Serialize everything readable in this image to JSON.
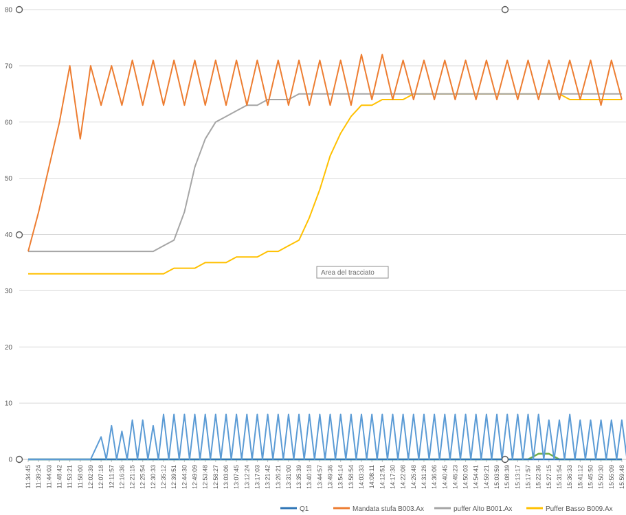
{
  "chart_data": {
    "type": "line",
    "title": "",
    "xlabel": "",
    "ylabel": "",
    "ylim": [
      0,
      80
    ],
    "yticks": [
      0,
      10,
      20,
      30,
      40,
      50,
      60,
      70,
      80
    ],
    "grid": true,
    "legend_position": "bottom",
    "x": [
      "11:34:45",
      "11:39:24",
      "11:44:03",
      "11:48:42",
      "11:53:21",
      "11:58:00",
      "12:02:39",
      "12:07:18",
      "12:11:57",
      "12:16:36",
      "12:21:15",
      "12:25:54",
      "12:30:33",
      "12:35:12",
      "12:39:51",
      "12:44:30",
      "12:49:09",
      "12:53:48",
      "12:58:27",
      "13:03:06",
      "13:07:45",
      "13:12:24",
      "13:17:03",
      "13:21:42",
      "13:26:21",
      "13:31:00",
      "13:35:39",
      "13:40:18",
      "13:44:57",
      "13:49:36",
      "13:54:14",
      "13:58:54",
      "14:03:33",
      "14:08:11",
      "14:12:51",
      "14:17:30",
      "14:22:08",
      "14:26:48",
      "14:31:26",
      "14:36:06",
      "14:40:45",
      "14:45:23",
      "14:50:03",
      "14:54:41",
      "14:59:21",
      "15:03:59",
      "15:08:39",
      "15:13:17",
      "15:17:57",
      "15:22:36",
      "15:27:15",
      "15:31:54",
      "15:36:33",
      "15:41:12",
      "15:45:50",
      "15:50:30",
      "15:55:09",
      "15:59:48"
    ],
    "series": [
      {
        "name": "Q1",
        "color": "#2e75b6",
        "values": [
          0,
          0,
          0,
          0,
          0,
          0,
          0,
          0,
          0,
          0,
          0,
          0,
          0,
          0,
          0,
          0,
          0,
          0,
          0,
          0,
          0,
          0,
          0,
          0,
          0,
          0,
          0,
          0,
          0,
          0,
          0,
          0,
          0,
          0,
          0,
          0,
          0,
          0,
          0,
          0,
          0,
          0,
          0,
          0,
          0,
          0,
          0,
          0,
          0,
          0,
          0,
          0,
          0,
          0,
          0,
          0,
          0,
          0
        ]
      },
      {
        "name": "Mandata stufa B003.Ax",
        "color": "#ed7d31",
        "values": [
          37,
          44,
          52,
          60,
          70,
          57,
          70,
          63,
          70,
          63,
          71,
          63,
          71,
          63,
          71,
          63,
          71,
          63,
          71,
          63,
          71,
          63,
          71,
          63,
          71,
          63,
          71,
          63,
          71,
          63,
          71,
          63,
          72,
          64,
          72,
          64,
          71,
          64,
          71,
          64,
          71,
          64,
          71,
          64,
          71,
          64,
          71,
          64,
          71,
          64,
          71,
          64,
          71,
          64,
          71,
          63,
          71,
          64
        ]
      },
      {
        "name": "puffer Alto B001.Ax",
        "color": "#a5a5a5",
        "values": [
          37,
          37,
          37,
          37,
          37,
          37,
          37,
          37,
          37,
          37,
          37,
          37,
          37,
          38,
          39,
          44,
          52,
          57,
          60,
          61,
          62,
          63,
          63,
          64,
          64,
          64,
          65,
          65,
          65,
          65,
          65,
          65,
          65,
          65,
          65,
          65,
          65,
          65,
          65,
          65,
          65,
          65,
          65,
          65,
          65,
          65,
          65,
          65,
          65,
          65,
          65,
          65,
          65,
          65,
          65,
          65,
          65,
          65
        ]
      },
      {
        "name": "Puffer Basso B009.Ax",
        "color": "#ffc000",
        "values": [
          33,
          33,
          33,
          33,
          33,
          33,
          33,
          33,
          33,
          33,
          33,
          33,
          33,
          33,
          34,
          34,
          34,
          35,
          35,
          35,
          36,
          36,
          36,
          37,
          37,
          38,
          39,
          43,
          48,
          54,
          58,
          61,
          63,
          63,
          64,
          64,
          64,
          65,
          65,
          65,
          65,
          65,
          65,
          65,
          65,
          65,
          65,
          65,
          65,
          65,
          65,
          65,
          64,
          64,
          64,
          64,
          64,
          64
        ]
      }
    ],
    "extra_series_unlabeled": [
      {
        "color": "#5b9bd5",
        "values": [
          0,
          0,
          0,
          0,
          0,
          0,
          0,
          4,
          6,
          5,
          7,
          7,
          6,
          8,
          8,
          8,
          8,
          8,
          8,
          8,
          8,
          8,
          8,
          8,
          8,
          8,
          8,
          8,
          8,
          8,
          8,
          8,
          8,
          8,
          8,
          8,
          8,
          8,
          8,
          8,
          8,
          8,
          8,
          8,
          8,
          8,
          8,
          8,
          8,
          8,
          7,
          7,
          8,
          7,
          7,
          7,
          7,
          7
        ]
      },
      {
        "color": "#70ad47",
        "values": [
          0,
          0,
          0,
          0,
          0,
          0,
          0,
          0,
          0,
          0,
          0,
          0,
          0,
          0,
          0,
          0,
          0,
          0,
          0,
          0,
          0,
          0,
          0,
          0,
          0,
          0,
          0,
          0,
          0,
          0,
          0,
          0,
          0,
          0,
          0,
          0,
          0,
          0,
          0,
          0,
          0,
          0,
          0,
          0,
          0,
          0,
          0,
          0,
          0,
          1,
          1,
          0,
          0,
          0,
          0,
          0,
          0,
          0
        ]
      }
    ],
    "annotations": [
      "Area del tracciato"
    ]
  },
  "ui": {
    "tooltip_text": "Area del tracciato"
  }
}
